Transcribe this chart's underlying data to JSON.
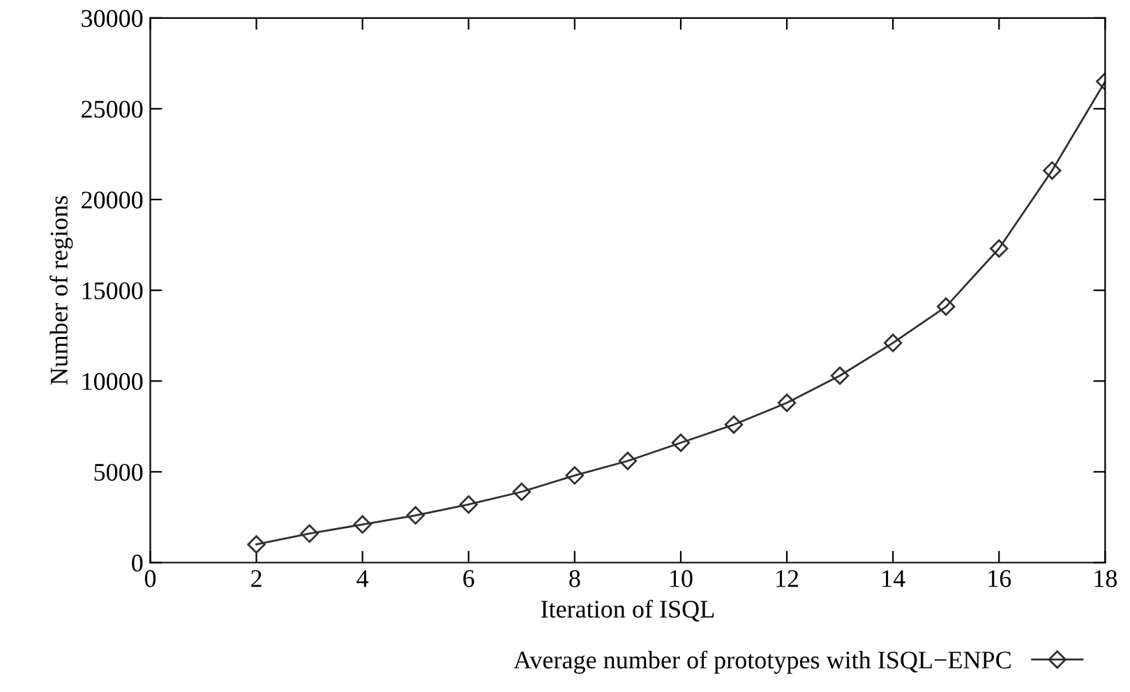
{
  "chart_data": {
    "type": "line",
    "xlabel": "Iteration of ISQL",
    "ylabel": "Number of regions",
    "x": [
      2,
      3,
      4,
      5,
      6,
      7,
      8,
      9,
      10,
      11,
      12,
      13,
      14,
      15,
      16,
      17,
      18
    ],
    "series": [
      {
        "name": "Average number of prototypes with ISQL−ENPC",
        "color": "#303030",
        "values": [
          1000,
          1600,
          2100,
          2600,
          3200,
          3900,
          4800,
          5600,
          6600,
          7600,
          8800,
          10300,
          12100,
          14100,
          17300,
          21600,
          26500
        ]
      }
    ],
    "xlim": [
      0,
      18
    ],
    "xticks": [
      0,
      2,
      4,
      6,
      8,
      10,
      12,
      14,
      16,
      18
    ],
    "ylim": [
      0,
      30000
    ],
    "yticks": [
      0,
      5000,
      10000,
      15000,
      20000,
      25000,
      30000
    ],
    "grid": false,
    "legend": "bottom right",
    "marker": "diamond",
    "line_style": "solid"
  }
}
